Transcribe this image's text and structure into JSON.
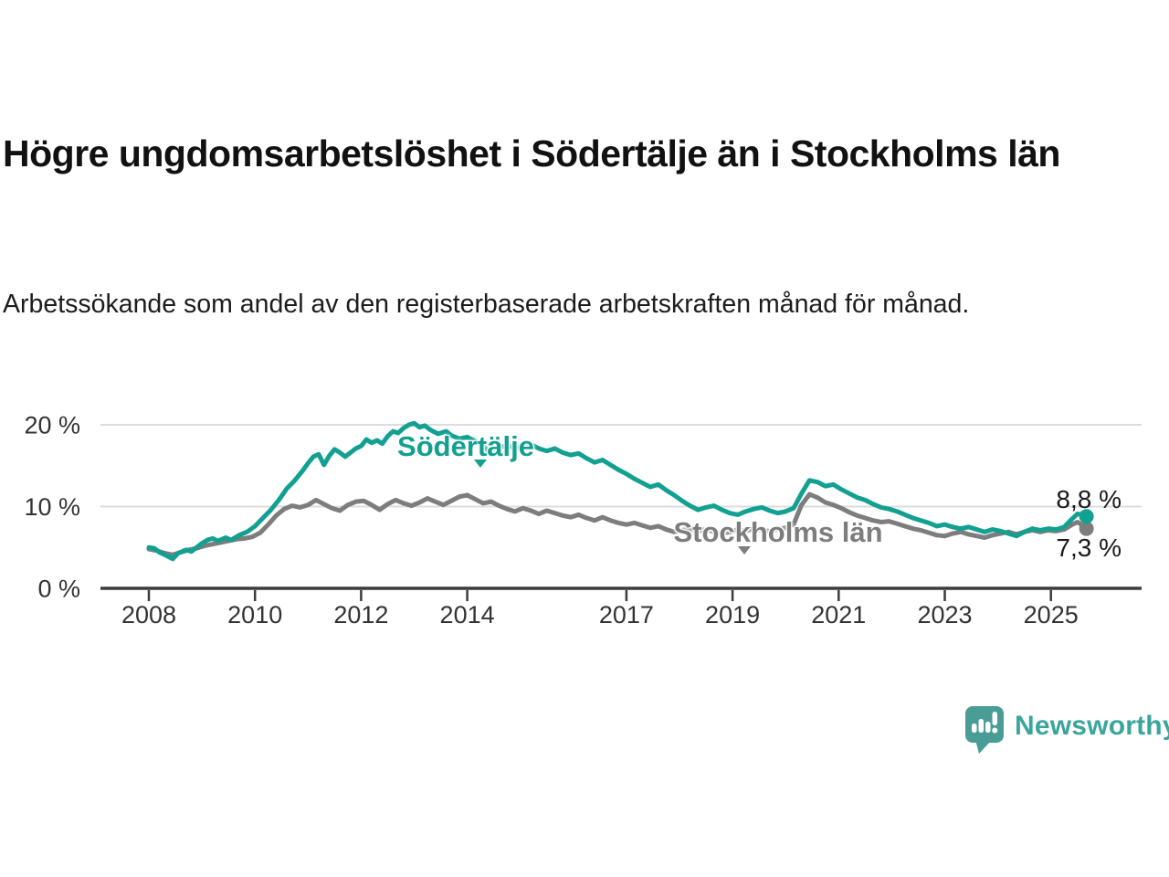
{
  "header": {
    "title": "Högre ungdomsarbetslöshet i Södertälje än i Stockholms län",
    "subtitle": "Arbetssökande som andel av den registerbaserade arbetskraften månad för månad."
  },
  "chart_data": {
    "type": "line",
    "title": "Högre ungdomsarbetslöshet i Södertälje än i Stockholms län",
    "xlabel": "",
    "ylabel": "Arbetssökande som andel av den registerbaserade arbetskraften",
    "x_axis": {
      "ticks": [
        2008,
        2010,
        2012,
        2014,
        2017,
        2019,
        2021,
        2023,
        2025
      ],
      "tick_labels": [
        "2008",
        "2010",
        "2012",
        "2014",
        "2017",
        "2019",
        "2021",
        "2023",
        "2025"
      ],
      "range": [
        2007.1,
        2026.7
      ]
    },
    "y_axis": {
      "ticks": [
        0,
        10,
        20
      ],
      "tick_labels": [
        "0 %",
        "10 %",
        "20 %"
      ],
      "range": [
        0,
        22
      ],
      "gridlines": true
    },
    "legend_position": "inline-labels",
    "series": [
      {
        "name": "Södertälje",
        "color": "#12a091",
        "end_label": "8,8 %",
        "end_value": 8.8,
        "points": [
          [
            2008.0,
            5.0
          ],
          [
            2008.1,
            4.9
          ],
          [
            2008.2,
            4.4
          ],
          [
            2008.3,
            4.1
          ],
          [
            2008.45,
            3.6
          ],
          [
            2008.55,
            4.3
          ],
          [
            2008.7,
            4.7
          ],
          [
            2008.8,
            4.5
          ],
          [
            2008.9,
            5.0
          ],
          [
            2009.0,
            5.5
          ],
          [
            2009.1,
            5.9
          ],
          [
            2009.2,
            6.1
          ],
          [
            2009.3,
            5.8
          ],
          [
            2009.45,
            6.2
          ],
          [
            2009.55,
            5.9
          ],
          [
            2009.7,
            6.5
          ],
          [
            2009.85,
            6.9
          ],
          [
            2010.0,
            7.6
          ],
          [
            2010.15,
            8.6
          ],
          [
            2010.3,
            9.6
          ],
          [
            2010.45,
            10.8
          ],
          [
            2010.6,
            12.2
          ],
          [
            2010.75,
            13.2
          ],
          [
            2010.9,
            14.4
          ],
          [
            2011.0,
            15.3
          ],
          [
            2011.1,
            16.1
          ],
          [
            2011.2,
            16.4
          ],
          [
            2011.3,
            15.1
          ],
          [
            2011.4,
            16.2
          ],
          [
            2011.5,
            17.0
          ],
          [
            2011.6,
            16.6
          ],
          [
            2011.7,
            16.1
          ],
          [
            2011.8,
            16.6
          ],
          [
            2011.9,
            17.1
          ],
          [
            2012.0,
            17.4
          ],
          [
            2012.1,
            18.2
          ],
          [
            2012.2,
            17.8
          ],
          [
            2012.3,
            18.1
          ],
          [
            2012.4,
            17.7
          ],
          [
            2012.5,
            18.6
          ],
          [
            2012.6,
            19.2
          ],
          [
            2012.7,
            19.0
          ],
          [
            2012.8,
            19.6
          ],
          [
            2012.9,
            20.0
          ],
          [
            2013.0,
            20.2
          ],
          [
            2013.1,
            19.7
          ],
          [
            2013.2,
            19.9
          ],
          [
            2013.3,
            19.4
          ],
          [
            2013.45,
            18.9
          ],
          [
            2013.6,
            19.2
          ],
          [
            2013.7,
            18.7
          ],
          [
            2013.85,
            18.3
          ],
          [
            2014.0,
            18.5
          ],
          [
            2014.15,
            18.0
          ],
          [
            2014.3,
            17.4
          ],
          [
            2014.45,
            16.4
          ],
          [
            2014.6,
            17.2
          ],
          [
            2014.75,
            17.5
          ],
          [
            2014.9,
            17.1
          ],
          [
            2015.05,
            17.4
          ],
          [
            2015.2,
            17.6
          ],
          [
            2015.35,
            17.1
          ],
          [
            2015.5,
            16.8
          ],
          [
            2015.65,
            17.1
          ],
          [
            2015.8,
            16.6
          ],
          [
            2015.95,
            16.3
          ],
          [
            2016.1,
            16.5
          ],
          [
            2016.25,
            15.9
          ],
          [
            2016.4,
            15.4
          ],
          [
            2016.55,
            15.7
          ],
          [
            2016.7,
            15.1
          ],
          [
            2016.85,
            14.5
          ],
          [
            2017.0,
            14.0
          ],
          [
            2017.15,
            13.4
          ],
          [
            2017.3,
            12.9
          ],
          [
            2017.45,
            12.4
          ],
          [
            2017.6,
            12.7
          ],
          [
            2017.75,
            12.0
          ],
          [
            2017.9,
            11.4
          ],
          [
            2018.05,
            10.7
          ],
          [
            2018.2,
            10.1
          ],
          [
            2018.35,
            9.6
          ],
          [
            2018.5,
            9.9
          ],
          [
            2018.65,
            10.1
          ],
          [
            2018.8,
            9.6
          ],
          [
            2018.95,
            9.2
          ],
          [
            2019.1,
            9.0
          ],
          [
            2019.25,
            9.4
          ],
          [
            2019.4,
            9.7
          ],
          [
            2019.55,
            9.9
          ],
          [
            2019.7,
            9.5
          ],
          [
            2019.85,
            9.2
          ],
          [
            2020.0,
            9.4
          ],
          [
            2020.15,
            9.8
          ],
          [
            2020.3,
            11.6
          ],
          [
            2020.45,
            13.2
          ],
          [
            2020.6,
            13.0
          ],
          [
            2020.75,
            12.5
          ],
          [
            2020.9,
            12.7
          ],
          [
            2021.05,
            12.1
          ],
          [
            2021.2,
            11.6
          ],
          [
            2021.35,
            11.1
          ],
          [
            2021.5,
            10.8
          ],
          [
            2021.65,
            10.3
          ],
          [
            2021.8,
            9.9
          ],
          [
            2021.95,
            9.7
          ],
          [
            2022.1,
            9.4
          ],
          [
            2022.25,
            9.0
          ],
          [
            2022.4,
            8.6
          ],
          [
            2022.55,
            8.3
          ],
          [
            2022.7,
            8.0
          ],
          [
            2022.85,
            7.6
          ],
          [
            2023.0,
            7.8
          ],
          [
            2023.15,
            7.5
          ],
          [
            2023.3,
            7.3
          ],
          [
            2023.45,
            7.5
          ],
          [
            2023.6,
            7.2
          ],
          [
            2023.75,
            6.9
          ],
          [
            2023.9,
            7.2
          ],
          [
            2024.05,
            7.0
          ],
          [
            2024.2,
            6.7
          ],
          [
            2024.35,
            6.4
          ],
          [
            2024.5,
            6.9
          ],
          [
            2024.65,
            7.3
          ],
          [
            2024.8,
            7.1
          ],
          [
            2024.95,
            7.3
          ],
          [
            2025.1,
            7.2
          ],
          [
            2025.25,
            7.5
          ],
          [
            2025.4,
            8.5
          ],
          [
            2025.5,
            9.1
          ],
          [
            2025.6,
            9.0
          ],
          [
            2025.67,
            8.8
          ]
        ]
      },
      {
        "name": "Stockholms län",
        "color": "#7d7d7d",
        "end_label": "7,3 %",
        "end_value": 7.3,
        "points": [
          [
            2008.0,
            4.8
          ],
          [
            2008.15,
            4.6
          ],
          [
            2008.3,
            4.3
          ],
          [
            2008.45,
            4.1
          ],
          [
            2008.6,
            4.4
          ],
          [
            2008.75,
            4.7
          ],
          [
            2008.9,
            4.9
          ],
          [
            2009.05,
            5.2
          ],
          [
            2009.2,
            5.4
          ],
          [
            2009.35,
            5.6
          ],
          [
            2009.5,
            5.8
          ],
          [
            2009.65,
            6.0
          ],
          [
            2009.8,
            6.1
          ],
          [
            2009.95,
            6.3
          ],
          [
            2010.1,
            6.8
          ],
          [
            2010.25,
            7.8
          ],
          [
            2010.4,
            8.9
          ],
          [
            2010.55,
            9.7
          ],
          [
            2010.7,
            10.1
          ],
          [
            2010.85,
            9.9
          ],
          [
            2011.0,
            10.2
          ],
          [
            2011.15,
            10.8
          ],
          [
            2011.3,
            10.3
          ],
          [
            2011.45,
            9.8
          ],
          [
            2011.6,
            9.5
          ],
          [
            2011.75,
            10.2
          ],
          [
            2011.9,
            10.6
          ],
          [
            2012.05,
            10.7
          ],
          [
            2012.2,
            10.2
          ],
          [
            2012.35,
            9.6
          ],
          [
            2012.5,
            10.3
          ],
          [
            2012.65,
            10.8
          ],
          [
            2012.8,
            10.4
          ],
          [
            2012.95,
            10.1
          ],
          [
            2013.1,
            10.5
          ],
          [
            2013.25,
            11.0
          ],
          [
            2013.4,
            10.6
          ],
          [
            2013.55,
            10.2
          ],
          [
            2013.7,
            10.7
          ],
          [
            2013.85,
            11.2
          ],
          [
            2014.0,
            11.4
          ],
          [
            2014.15,
            10.9
          ],
          [
            2014.3,
            10.4
          ],
          [
            2014.45,
            10.6
          ],
          [
            2014.6,
            10.1
          ],
          [
            2014.75,
            9.7
          ],
          [
            2014.9,
            9.4
          ],
          [
            2015.05,
            9.8
          ],
          [
            2015.2,
            9.5
          ],
          [
            2015.35,
            9.1
          ],
          [
            2015.5,
            9.5
          ],
          [
            2015.65,
            9.2
          ],
          [
            2015.8,
            8.9
          ],
          [
            2015.95,
            8.7
          ],
          [
            2016.1,
            9.0
          ],
          [
            2016.25,
            8.6
          ],
          [
            2016.4,
            8.3
          ],
          [
            2016.55,
            8.7
          ],
          [
            2016.7,
            8.3
          ],
          [
            2016.85,
            8.0
          ],
          [
            2017.0,
            7.8
          ],
          [
            2017.15,
            8.0
          ],
          [
            2017.3,
            7.7
          ],
          [
            2017.45,
            7.4
          ],
          [
            2017.6,
            7.6
          ],
          [
            2017.75,
            7.2
          ],
          [
            2017.9,
            6.9
          ],
          [
            2018.05,
            7.1
          ],
          [
            2018.2,
            7.3
          ],
          [
            2018.35,
            7.0
          ],
          [
            2018.5,
            7.2
          ],
          [
            2018.65,
            6.9
          ],
          [
            2018.8,
            6.7
          ],
          [
            2018.95,
            6.9
          ],
          [
            2019.1,
            7.2
          ],
          [
            2019.25,
            7.0
          ],
          [
            2019.4,
            7.3
          ],
          [
            2019.55,
            7.1
          ],
          [
            2019.7,
            7.0
          ],
          [
            2019.85,
            7.2
          ],
          [
            2020.0,
            7.4
          ],
          [
            2020.15,
            7.8
          ],
          [
            2020.3,
            10.2
          ],
          [
            2020.45,
            11.5
          ],
          [
            2020.6,
            11.1
          ],
          [
            2020.75,
            10.5
          ],
          [
            2020.9,
            10.2
          ],
          [
            2021.05,
            9.8
          ],
          [
            2021.2,
            9.3
          ],
          [
            2021.35,
            8.9
          ],
          [
            2021.5,
            8.6
          ],
          [
            2021.65,
            8.3
          ],
          [
            2021.8,
            8.1
          ],
          [
            2021.95,
            8.2
          ],
          [
            2022.1,
            7.9
          ],
          [
            2022.25,
            7.6
          ],
          [
            2022.4,
            7.3
          ],
          [
            2022.55,
            7.1
          ],
          [
            2022.7,
            6.8
          ],
          [
            2022.85,
            6.5
          ],
          [
            2023.0,
            6.4
          ],
          [
            2023.15,
            6.7
          ],
          [
            2023.3,
            6.9
          ],
          [
            2023.45,
            6.6
          ],
          [
            2023.6,
            6.4
          ],
          [
            2023.75,
            6.2
          ],
          [
            2023.9,
            6.5
          ],
          [
            2024.05,
            6.7
          ],
          [
            2024.2,
            6.9
          ],
          [
            2024.35,
            6.6
          ],
          [
            2024.5,
            6.9
          ],
          [
            2024.65,
            7.1
          ],
          [
            2024.8,
            6.9
          ],
          [
            2024.95,
            7.1
          ],
          [
            2025.1,
            7.0
          ],
          [
            2025.25,
            7.2
          ],
          [
            2025.4,
            7.8
          ],
          [
            2025.5,
            8.1
          ],
          [
            2025.6,
            7.7
          ],
          [
            2025.67,
            7.3
          ]
        ]
      }
    ]
  },
  "branding": {
    "logo_text": "Newsworthy"
  },
  "colors": {
    "sodertalje": "#12a091",
    "stockholm": "#7d7d7d",
    "gridline": "#dcdcdc",
    "axis": "#3b3b3b",
    "axis_text": "#333333",
    "logo_icon": "#4a9d97",
    "logo_text": "#3aa69b"
  }
}
